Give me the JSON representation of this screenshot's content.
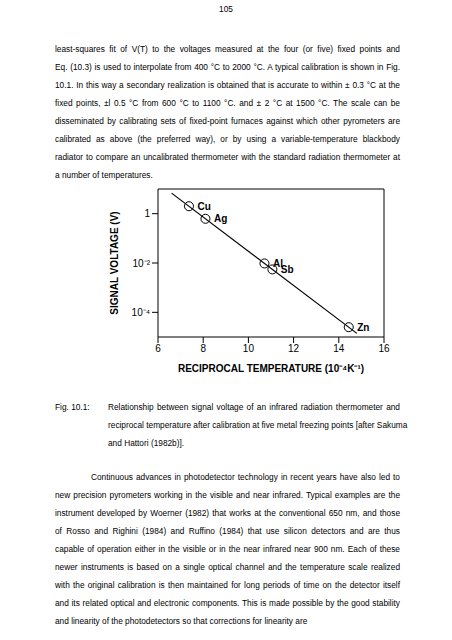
{
  "page_number": "105",
  "paragraphs": [
    {
      "indent": false,
      "lines": [
        "least-squares fit of V(T) to the voltages measured at the four (or five) fixed points and",
        "Eq. (10.3) is used to interpolate from 400 °C to 2000 °C. A typical calibration is shown in Fig.",
        "10.1. In this way a secondary realization is obtained that is accurate to within ± 0.3 °C at the",
        "fixed points, ±l 0.5 °C from 600 °C to 1100 °C. and ± 2 °C at 1500 °C. The scale can be",
        "disseminated by calibrating sets of fixed-point furnaces against which other pyrometers are",
        "calibrated as above (the preferred way), or by using a variable-temperature blackbody",
        "radiator to compare an uncalibrated thermometer with the standard radiation thermometer at",
        "a number of temperatures."
      ]
    },
    {
      "indent": true,
      "lines": [
        "Continuous advances in photodetector technology in recent years have also led to",
        "new precision pyrometers working in the visible and near infrared. Typical examples are the",
        "instrument developed by Woerner (1982) that works at the conventional 650 nm, and those",
        "of Rosso and Righini (1984) and Ruffino (1984) that use silicon detectors and are thus",
        "capable of operation either in the visible or in the near infrared near 900 nm. Each of these",
        "newer instruments is based on a single optical channel and the temperature scale realized",
        "with the original calibration is then maintained for long periods of time on the detector itself",
        "and its related optical and electronic components. This is made possible by the good stability",
        "and linearity of the photodetectors so that corrections for linearity are"
      ]
    }
  ],
  "caption": {
    "label": "Fig. 10.1:",
    "lines": [
      "Relationship between signal voltage of an infrared radiation thermometer and",
      "reciprocal temperature after calibration at five metal freezing points [after Sakuma",
      "and Hattori (1982b)]."
    ]
  },
  "chart_data": {
    "type": "scatter",
    "x_label": "RECIPROCAL TEMPERATURE (10⁻⁴K⁻¹)",
    "y_label": "SIGNAL VOLTAGE (V)",
    "log": "y",
    "color": "#000000",
    "xlim": [
      6,
      16
    ],
    "xticks": [
      6,
      8,
      10,
      12,
      14,
      16
    ],
    "ylim": [
      1e-05,
      10
    ],
    "yticks": [
      {
        "value": 0.0001,
        "label": "10⁻⁴"
      },
      {
        "value": 0.01,
        "label": "10⁻²"
      },
      1
    ],
    "series": [
      {
        "type": "scatter",
        "marker": "circle",
        "x": [
          7.37,
          8.1,
          10.71,
          11.06,
          14.44
        ],
        "values": [
          2.0,
          0.62,
          0.0096,
          0.0055,
          2.5e-05
        ],
        "point_labels": [
          "Cu",
          "Ag",
          "Al",
          "Sb",
          "Zn"
        ]
      },
      {
        "type": "line",
        "x": [
          6.6,
          14.8
        ],
        "values": [
          6.8,
          1.4e-05
        ]
      }
    ]
  }
}
